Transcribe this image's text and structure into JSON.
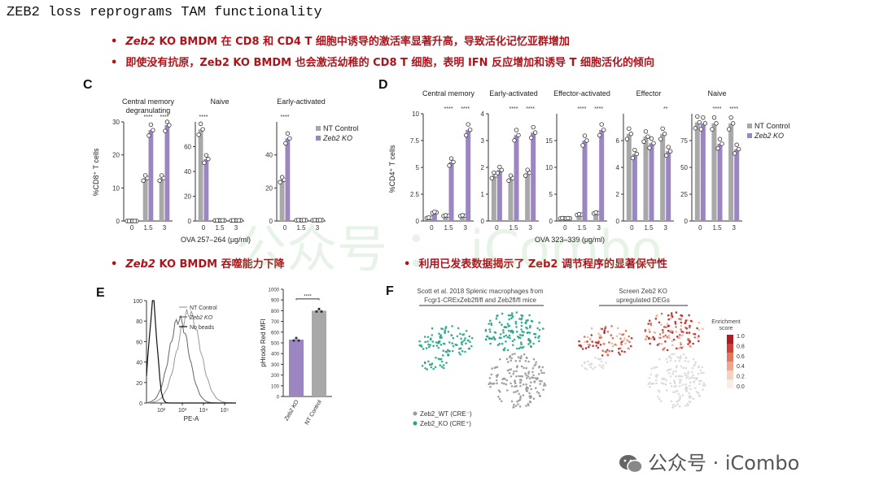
{
  "title": "ZEB2 loss reprograms TAM functionality",
  "bullets": [
    {
      "gene": "Zeb2",
      "text": "KO BMDM 在 CD8 和 CD4 T 细胞中诱导的激活率显著升高，导致活化记忆亚群增加"
    },
    {
      "gene": "",
      "text": "即使没有抗原，Zeb2 KO BMDM 也会激活幼稚的 CD8 T 细胞，表明 IFN 反应增加和诱导 T 细胞活化的倾向"
    },
    {
      "gene": "Zeb2",
      "text": "KO BMDM 吞噬能力下降"
    },
    {
      "gene": "",
      "text": "利用已发表数据揭示了 Zeb2 调节程序的显著保守性"
    }
  ],
  "panel_letters": {
    "c": "C",
    "d": "D",
    "e": "E",
    "f": "F"
  },
  "colors": {
    "control": "#a8a8a8",
    "ko": "#9b86c2",
    "bullet": "#b0121a",
    "ko_dot": "#22a58a",
    "wt_dot": "#9a9a9a"
  },
  "legend": {
    "control": "NT Control",
    "ko": "Zeb2 KO"
  },
  "chart_data": [
    {
      "type": "bar",
      "id": "C",
      "ylabel": "%CD8⁺ T cells",
      "xlabel": "OVA 257–264 (μg/ml)",
      "x": [
        "0",
        "1.5",
        "3"
      ],
      "groups": [
        {
          "title": "Central memory\ndegranulating",
          "ylim": [
            0,
            30
          ],
          "yticks": [
            0,
            10,
            20,
            30
          ],
          "control": [
            0,
            13,
            13
          ],
          "ko": [
            0,
            27.5,
            29
          ],
          "sig": [
            "",
            "****",
            "****"
          ]
        },
        {
          "title": "Naive",
          "ylim": [
            0,
            80
          ],
          "yticks": [
            0,
            20,
            40,
            60
          ],
          "control": [
            74,
            0.5,
            0.5
          ],
          "ko": [
            50,
            0.5,
            0.5
          ],
          "sig": [
            "****",
            "",
            ""
          ]
        },
        {
          "title": "Early-activated",
          "ylim": [
            0,
            60
          ],
          "yticks": [
            0,
            20,
            40
          ],
          "control": [
            25,
            0.5,
            0.5
          ],
          "ko": [
            50,
            0.5,
            0.5
          ],
          "sig": [
            "****",
            "",
            ""
          ]
        }
      ]
    },
    {
      "type": "bar",
      "id": "D",
      "ylabel": "%CD4⁺ T cells",
      "xlabel": "OVA 323–339 (μg/ml)",
      "x": [
        "0",
        "1.5",
        "3"
      ],
      "groups": [
        {
          "title": "Central memory",
          "ylim": [
            0,
            10
          ],
          "yticks": [
            0,
            2.5,
            5.0,
            7.5,
            10.0
          ],
          "control": [
            0.3,
            0.5,
            0.5
          ],
          "ko": [
            0.8,
            5.5,
            8.5
          ],
          "sig": [
            "",
            "****",
            "****"
          ]
        },
        {
          "title": "Early-activated",
          "ylim": [
            0,
            4
          ],
          "yticks": [
            0,
            1,
            2,
            3,
            4
          ],
          "control": [
            1.7,
            1.6,
            1.8
          ],
          "ko": [
            1.9,
            3.2,
            3.3
          ],
          "sig": [
            "",
            "****",
            "****"
          ]
        },
        {
          "title": "Effector-activated",
          "ylim": [
            0,
            20
          ],
          "yticks": [
            0,
            5,
            10,
            15
          ],
          "control": [
            0.5,
            1.2,
            1.5
          ],
          "ko": [
            0.5,
            15,
            17
          ],
          "sig": [
            "",
            "****",
            "****"
          ]
        },
        {
          "title": "Effector",
          "ylim": [
            0,
            8
          ],
          "yticks": [
            0,
            2,
            4,
            6
          ],
          "control": [
            6.5,
            6.3,
            6.5
          ],
          "ko": [
            5,
            5.8,
            5.2
          ],
          "sig": [
            "",
            "",
            "**"
          ]
        },
        {
          "title": "Naive",
          "ylim": [
            0,
            100
          ],
          "yticks": [
            0,
            25,
            50,
            75
          ],
          "control": [
            92,
            91,
            91
          ],
          "ko": [
            91,
            72,
            67
          ],
          "sig": [
            "",
            "****",
            "****"
          ]
        }
      ]
    },
    {
      "type": "line",
      "id": "E-histogram",
      "xlabel": "PE-A",
      "ylabel": "",
      "xticks": [
        "10²",
        "10³",
        "10⁴",
        "10⁵"
      ],
      "yticks": [
        0,
        20,
        40,
        60,
        80,
        100
      ],
      "series": [
        {
          "name": "NT Control"
        },
        {
          "name": "Zeb2 KO"
        },
        {
          "name": "No beads"
        }
      ]
    },
    {
      "type": "bar",
      "id": "E-bar",
      "ylabel": "pHrodo Red MFI",
      "categories": [
        "Zeb2 KO",
        "NT Control"
      ],
      "values": [
        530,
        800
      ],
      "ylim": [
        0,
        1000
      ],
      "yticks": [
        0,
        100,
        200,
        300,
        400,
        500,
        600,
        700,
        800,
        900,
        1000
      ],
      "sig": "****"
    },
    {
      "type": "scatter",
      "id": "F",
      "title": "Scott et al. 2018 Splenic macrophages from Fcgr1-CRExZeb2fl/fl and Zeb2fl/fl mice",
      "title2": "Screen Zeb2 KO upregulated DEGs",
      "legend": [
        "Zeb2_WT (CRE⁻)",
        "Zeb2_KO (CRE⁺)"
      ],
      "colorbar_title": "Enrichment score",
      "colorbar_ticks": [
        "1.0",
        "0.8",
        "0.6",
        "0.4",
        "0.2",
        "0.0"
      ]
    }
  ],
  "watermark": "公众号 · iCombo",
  "ghost": "公众号 ： iCombo"
}
